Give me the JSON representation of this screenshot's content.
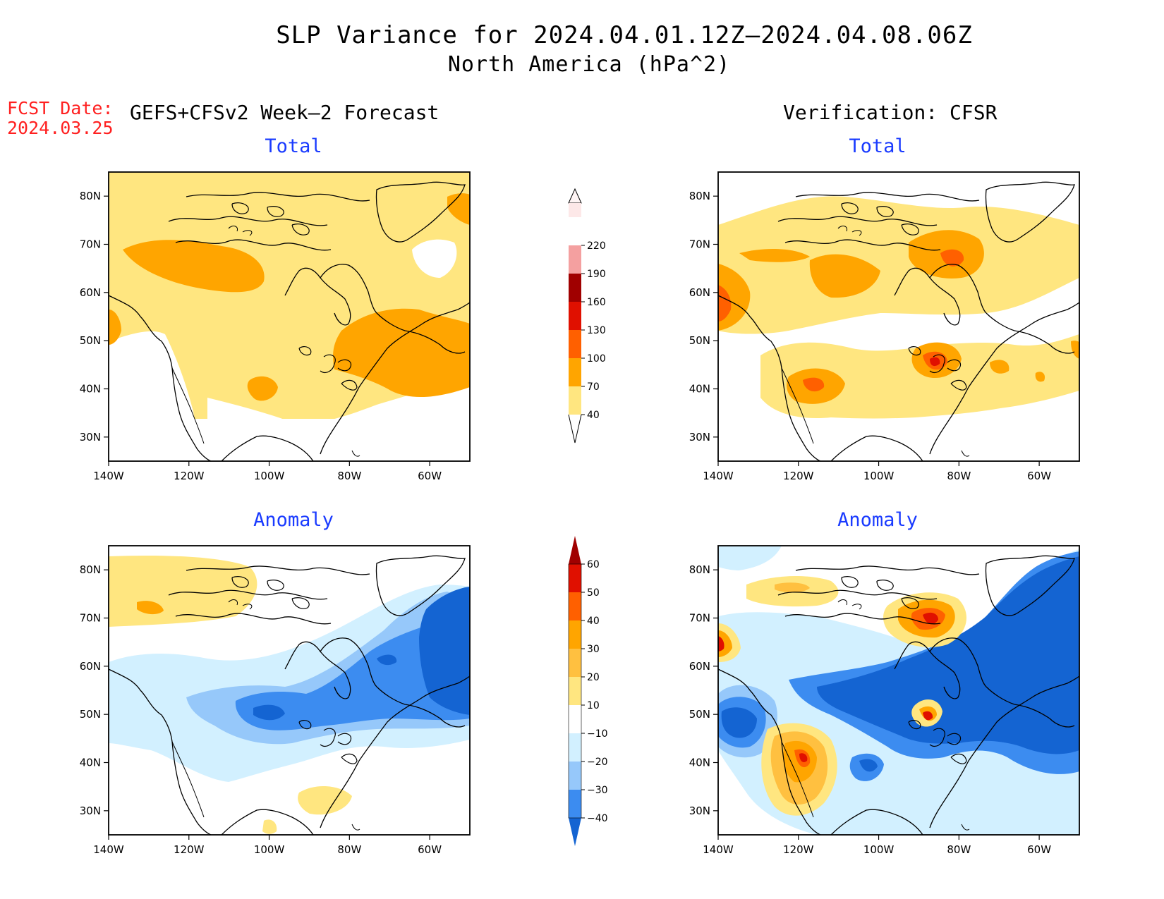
{
  "header": {
    "title_line1": "SLP Variance for 2024.04.01.12Z–2024.04.08.06Z",
    "title_line2": "North America (hPa^2)",
    "fcst_date_label": "FCST Date:",
    "fcst_date_value": "2024.03.25",
    "left_subtitle": "GEFS+CFSv2 Week–2 Forecast",
    "right_subtitle": "Verification: CFSR"
  },
  "panels": [
    {
      "id": "forecast_total",
      "title": "Total"
    },
    {
      "id": "verification_total",
      "title": "Total"
    },
    {
      "id": "forecast_anomaly",
      "title": "Anomaly"
    },
    {
      "id": "verification_anomaly",
      "title": "Anomaly"
    }
  ],
  "axes": {
    "lon_ticks": [
      "140W",
      "120W",
      "100W",
      "80W",
      "60W"
    ],
    "lat_ticks": [
      "80N",
      "70N",
      "60N",
      "50N",
      "40N",
      "30N"
    ],
    "lon_range": [
      -140,
      -50
    ],
    "lat_range": [
      25,
      85
    ]
  },
  "colorbars": {
    "total": {
      "levels": [
        "40",
        "70",
        "100",
        "130",
        "160",
        "190",
        "220"
      ],
      "colors": [
        "#ffe680",
        "#ffa500",
        "#ff6000",
        "#e01000",
        "#a00000",
        "#f4a0a0",
        "#fde8e8"
      ]
    },
    "anomaly": {
      "levels": [
        "−40",
        "−30",
        "−20",
        "−10",
        "10",
        "20",
        "30",
        "40",
        "50",
        "60"
      ],
      "colors": [
        "#1464d2",
        "#3c8cf0",
        "#96c8fa",
        "#d2f0ff",
        "#ffffff",
        "#ffe680",
        "#ffc040",
        "#ffa500",
        "#ff6000",
        "#e01000",
        "#a00000"
      ]
    }
  }
}
